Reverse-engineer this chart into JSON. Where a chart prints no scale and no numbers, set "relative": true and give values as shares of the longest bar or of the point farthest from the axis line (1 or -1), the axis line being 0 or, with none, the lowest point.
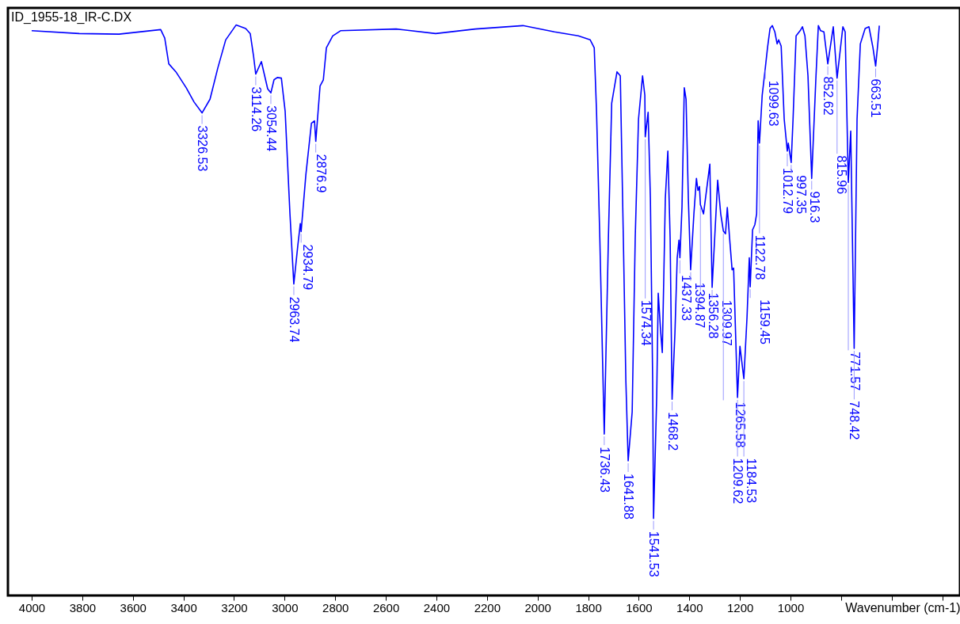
{
  "chart_data": {
    "type": "line",
    "title": "ID_1955-18_IR-C.DX",
    "xlabel": "Wavenumber (cm-1)",
    "relative": true,
    "xlim": [
      4094,
      330
    ],
    "xticks": [
      4000,
      3800,
      3600,
      3400,
      3200,
      3000,
      2800,
      2600,
      2400,
      2200,
      2000,
      1800,
      1600,
      1400,
      1200,
      1000,
      {
        "value": 800,
        "label": null
      },
      {
        "value": 600,
        "label": null
      },
      {
        "value": 400,
        "label": null
      }
    ],
    "grid": false,
    "marker": "none",
    "line_style": "solid",
    "series": [
      {
        "color": "#0000ff",
        "x": [
          4000,
          3812,
          3655,
          3490,
          3474,
          3458,
          3430,
          3389,
          3358,
          3326.53,
          3295,
          3264,
          3233,
          3192,
          3154,
          3136,
          3123,
          3114.26,
          3092,
          3079,
          3067,
          3054.44,
          3042,
          3029,
          3013,
          2998,
          2979,
          2963.74,
          2948,
          2938,
          2934.79,
          2916,
          2894,
          2882,
          2876.9,
          2860,
          2847,
          2835,
          2810,
          2779,
          2559,
          2403,
          2246,
          2058,
          1933,
          1839,
          1792,
          1776,
          1767,
          1754,
          1736.43,
          1720,
          1707,
          1686,
          1673,
          1661,
          1651,
          1641.88,
          1626,
          1614,
          1601,
          1585,
          1576,
          1574.34,
          1563,
          1554,
          1545,
          1541.53,
          1529,
          1523,
          1513,
          1507,
          1501,
          1495,
          1485,
          1476,
          1468.2,
          1457,
          1448,
          1441,
          1437.33,
          1429,
          1420,
          1413,
          1404,
          1394.87,
          1382,
          1372,
          1366,
          1360,
          1356.28,
          1344,
          1319,
          1309.97,
          1288,
          1276,
          1265.58,
          1257,
          1250,
          1241,
          1231,
          1225,
          1209.62,
          1200,
          1184.53,
          1172,
          1163,
          1159.45,
          1150,
          1141,
          1134,
          1128,
          1122.78,
          1112,
          1099.63,
          1091,
          1081,
          1072,
          1062,
          1053,
          1047,
          1037,
          1025,
          1012.79,
          1009,
          997.35,
          990,
          978,
          962,
          953,
          943,
          931,
          916.3,
          900,
          890,
          881,
          868,
          852.62,
          831,
          815.96,
          793,
          784,
          771.57,
          762,
          748.42,
          737,
          724,
          705,
          690,
          674,
          663.51,
          655,
          649
        ],
        "values": [
          0.99,
          0.985,
          0.984,
          0.992,
          0.977,
          0.932,
          0.918,
          0.89,
          0.865,
          0.846,
          0.87,
          0.925,
          0.974,
          1.0,
          0.994,
          0.985,
          0.946,
          0.914,
          0.936,
          0.911,
          0.888,
          0.881,
          0.904,
          0.908,
          0.907,
          0.849,
          0.669,
          0.546,
          0.613,
          0.652,
          0.638,
          0.738,
          0.828,
          0.832,
          0.796,
          0.893,
          0.904,
          0.96,
          0.981,
          0.99,
          0.993,
          0.985,
          0.993,
          0.999,
          0.988,
          0.981,
          0.974,
          0.96,
          0.849,
          0.627,
          0.283,
          0.627,
          0.863,
          0.918,
          0.911,
          0.627,
          0.377,
          0.236,
          0.322,
          0.627,
          0.835,
          0.911,
          0.877,
          0.804,
          0.847,
          0.696,
          0.377,
          0.135,
          0.35,
          0.53,
          0.46,
          0.426,
          0.558,
          0.696,
          0.779,
          0.627,
          0.344,
          0.46,
          0.592,
          0.623,
          0.592,
          0.682,
          0.89,
          0.87,
          0.696,
          0.571,
          0.669,
          0.731,
          0.71,
          0.717,
          0.685,
          0.669,
          0.756,
          0.54,
          0.728,
          0.669,
          0.639,
          0.634,
          0.68,
          0.627,
          0.571,
          0.574,
          0.347,
          0.437,
          0.38,
          0.488,
          0.592,
          0.541,
          0.641,
          0.65,
          0.669,
          0.832,
          0.793,
          0.877,
          0.925,
          0.96,
          0.994,
          0.999,
          0.988,
          0.967,
          0.974,
          0.963,
          0.835,
          0.779,
          0.793,
          0.759,
          0.835,
          0.981,
          0.99,
          0.997,
          0.981,
          0.911,
          0.731,
          0.904,
          0.999,
          0.99,
          0.988,
          0.932,
          0.997,
          0.907,
          0.997,
          0.988,
          0.724,
          0.814,
          0.433,
          0.835,
          0.967,
          0.994,
          0.997,
          0.96,
          0.928,
          0.967,
          0.999
        ]
      }
    ],
    "annotations": [
      {
        "text": "3326.53",
        "x": 3326.53,
        "y": 0.846
      },
      {
        "text": "3114.26",
        "x": 3114.26,
        "y": 0.914
      },
      {
        "text": "3054.44",
        "x": 3054.44,
        "y": 0.881
      },
      {
        "text": "2963.74",
        "x": 2963.74,
        "y": 0.546
      },
      {
        "text": "2934.79",
        "x": 2934.79,
        "y": 0.638
      },
      {
        "text": "2876.9",
        "x": 2876.9,
        "y": 0.796
      },
      {
        "text": "1736.43",
        "x": 1736.43,
        "y": 0.283
      },
      {
        "text": "1641.88",
        "x": 1641.88,
        "y": 0.236
      },
      {
        "text": "1574.34",
        "x": 1574.34,
        "y": 0.804
      },
      {
        "text": "1541.53",
        "x": 1541.53,
        "y": 0.135
      },
      {
        "text": "1468.2",
        "x": 1468.2,
        "y": 0.344
      },
      {
        "text": "1437.33",
        "x": 1437.33,
        "y": 0.592
      },
      {
        "text": "1394.87",
        "x": 1394.87,
        "y": 0.571
      },
      {
        "text": "1356.28",
        "x": 1356.28,
        "y": 0.685
      },
      {
        "text": "1309.97",
        "x": 1309.97,
        "y": 0.54
      },
      {
        "text": "1265.58",
        "x": 1265.58,
        "y": 0.639
      },
      {
        "text": "1209.62",
        "x": 1209.62,
        "y": 0.347
      },
      {
        "text": "1184.53",
        "x": 1184.53,
        "y": 0.38
      },
      {
        "text": "1159.45",
        "x": 1159.45,
        "y": 0.541
      },
      {
        "text": "1122.78",
        "x": 1122.78,
        "y": 0.793
      },
      {
        "text": "1099.63",
        "x": 1099.63,
        "y": 0.925
      },
      {
        "text": "1012.79",
        "x": 1012.79,
        "y": 0.779
      },
      {
        "text": "997.35",
        "x": 997.35,
        "y": 0.759
      },
      {
        "text": "916.3",
        "x": 916.3,
        "y": 0.731
      },
      {
        "text": "852.62",
        "x": 852.62,
        "y": 0.932
      },
      {
        "text": "815.96",
        "x": 815.96,
        "y": 0.907
      },
      {
        "text": "771.57",
        "x": 771.57,
        "y": 0.724
      },
      {
        "text": "748.42",
        "x": 748.42,
        "y": 0.433
      },
      {
        "text": "663.51",
        "x": 663.51,
        "y": 0.928
      }
    ]
  }
}
